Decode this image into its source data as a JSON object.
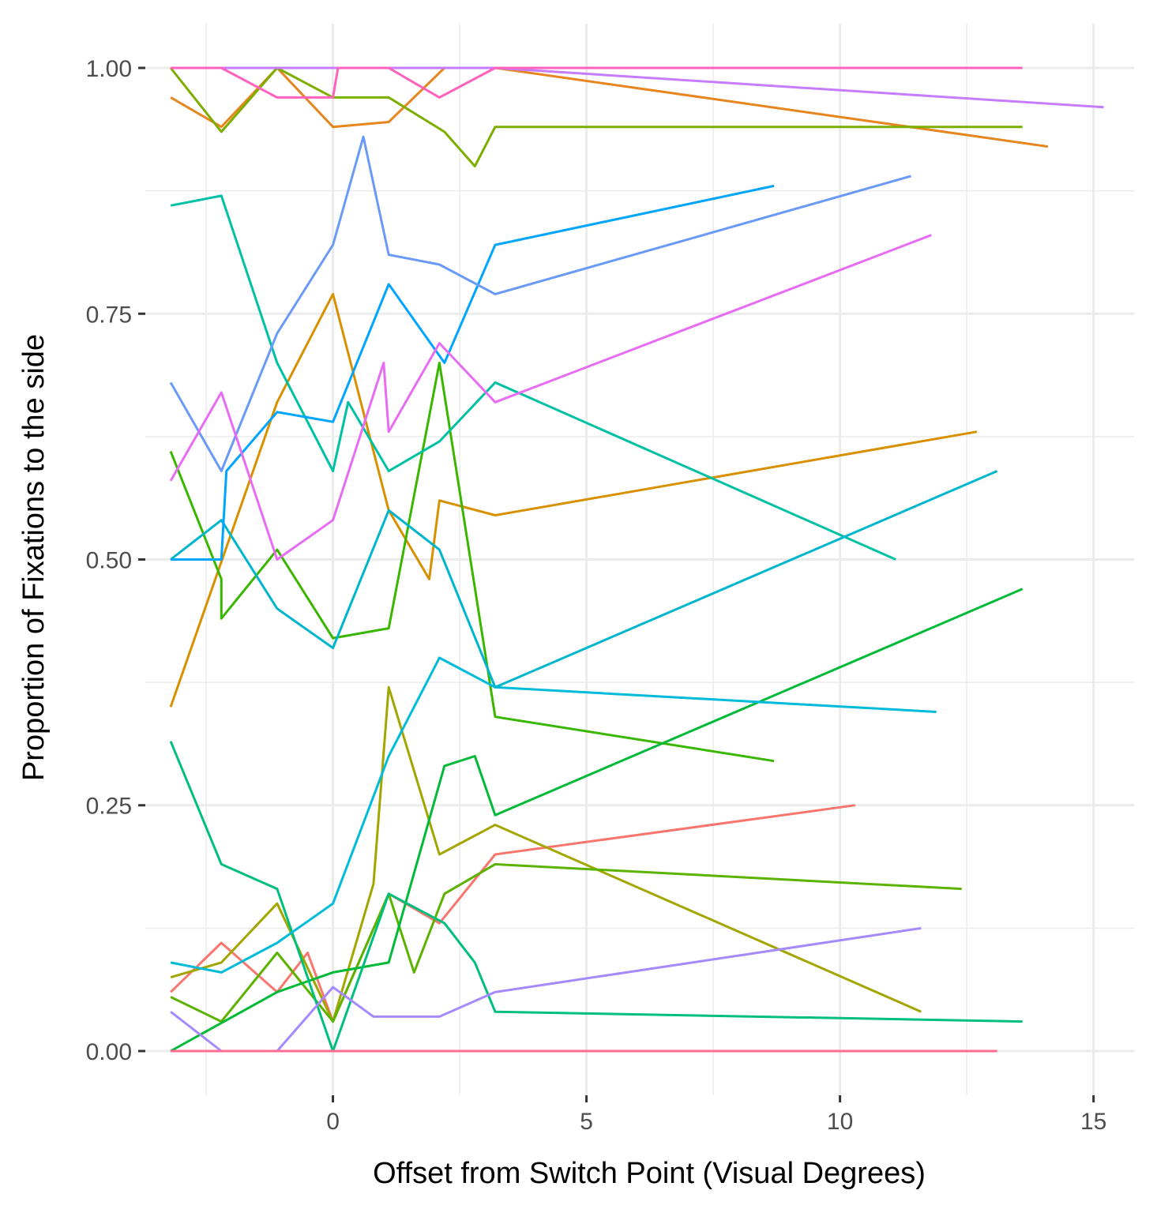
{
  "chart_data": {
    "type": "line",
    "title": "",
    "xlabel": "Offset from Switch Point (Visual Degrees)",
    "ylabel": "Proportion of Fixations to the side",
    "xlim": [
      -3.7,
      15.8
    ],
    "ylim": [
      -0.045,
      1.045
    ],
    "x_ticks": [
      0,
      5,
      10,
      15
    ],
    "x_tick_labels": [
      "0",
      "5",
      "10",
      "15"
    ],
    "y_ticks": [
      0,
      0.25,
      0.5,
      0.75,
      1
    ],
    "y_tick_labels": [
      "0.00",
      "0.25",
      "0.50",
      "0.75",
      "1.00"
    ],
    "grid": true,
    "legend": "none",
    "series": [
      {
        "color": "#F8766D",
        "x": [
          -3.2,
          -2.2,
          -1.1,
          -0.5,
          0,
          1.1,
          2.1,
          3.2,
          10.3
        ],
        "y": [
          0.06,
          0.11,
          0.06,
          0.1,
          0.03,
          0.16,
          0.13,
          0.2,
          0.25
        ]
      },
      {
        "color": "#E7851E",
        "x": [
          -3.2,
          -2.2,
          -1.1,
          0,
          1.1,
          2.2,
          3.2,
          14.1
        ],
        "y": [
          0.97,
          0.94,
          1.0,
          0.94,
          0.945,
          1.0,
          1.0,
          0.92
        ]
      },
      {
        "color": "#D89000",
        "x": [
          -3.2,
          -1.1,
          0,
          1.1,
          1.9,
          2.1,
          3.2,
          12.7
        ],
        "y": [
          0.35,
          0.66,
          0.77,
          0.55,
          0.48,
          0.56,
          0.545,
          0.63
        ]
      },
      {
        "color": "#A3A500",
        "x": [
          -3.2,
          -2.2,
          -1.1,
          0,
          0.8,
          1.1,
          2.1,
          3.2,
          11.6
        ],
        "y": [
          0.075,
          0.09,
          0.15,
          0.03,
          0.17,
          0.37,
          0.2,
          0.23,
          0.04
        ]
      },
      {
        "color": "#7CAE00",
        "x": [
          -3.2,
          -2.2,
          -1.1,
          0,
          1.1,
          2.2,
          2.8,
          3.2,
          13.6
        ],
        "y": [
          1.0,
          0.935,
          1.0,
          0.97,
          0.97,
          0.935,
          0.9,
          0.94,
          0.94
        ]
      },
      {
        "color": "#5BB300",
        "x": [
          -3.2,
          -2.2,
          -1.1,
          0,
          1.1,
          1.6,
          2.2,
          3.2,
          12.4
        ],
        "y": [
          0.055,
          0.03,
          0.1,
          0.03,
          0.16,
          0.08,
          0.16,
          0.19,
          0.165
        ]
      },
      {
        "color": "#39B600",
        "x": [
          -3.2,
          -2.2,
          -2.2,
          -1.1,
          0,
          1.1,
          2.1,
          3.2,
          8.7
        ],
        "y": [
          0.61,
          0.48,
          0.44,
          0.51,
          0.42,
          0.43,
          0.7,
          0.34,
          0.295
        ]
      },
      {
        "color": "#00BA38",
        "x": [
          -3.2,
          -1.1,
          0,
          1.1,
          2.2,
          2.8,
          3.2,
          13.6
        ],
        "y": [
          0.0,
          0.06,
          0.08,
          0.09,
          0.29,
          0.3,
          0.24,
          0.47
        ]
      },
      {
        "color": "#00BF7D",
        "x": [
          -3.2,
          -2.2,
          -1.1,
          0,
          1.1,
          2.2,
          2.8,
          3.2,
          13.6
        ],
        "y": [
          0.315,
          0.19,
          0.165,
          0.0,
          0.16,
          0.13,
          0.09,
          0.04,
          0.03
        ]
      },
      {
        "color": "#00C1A3",
        "x": [
          -3.2,
          -2.2,
          -1.1,
          0,
          0.3,
          1.1,
          2.1,
          3.2,
          11.1
        ],
        "y": [
          0.86,
          0.87,
          0.7,
          0.59,
          0.66,
          0.59,
          0.62,
          0.68,
          0.5
        ]
      },
      {
        "color": "#00BBDA",
        "x": [
          -3.2,
          -2.2,
          -1.1,
          0,
          1.1,
          2.1,
          3.2,
          11.9
        ],
        "y": [
          0.09,
          0.08,
          0.11,
          0.15,
          0.3,
          0.4,
          0.37,
          0.345
        ]
      },
      {
        "color": "#00B6CC",
        "x": [
          -3.2,
          -2.2,
          -1.1,
          0,
          1.1,
          2.1,
          3.2,
          13.1
        ],
        "y": [
          0.5,
          0.54,
          0.45,
          0.41,
          0.55,
          0.51,
          0.37,
          0.59
        ]
      },
      {
        "color": "#00A5FF",
        "x": [
          -3.2,
          -2.2,
          -2.1,
          -1.1,
          0,
          1.1,
          2.2,
          3.2,
          8.7
        ],
        "y": [
          0.5,
          0.5,
          0.59,
          0.65,
          0.64,
          0.78,
          0.7,
          0.82,
          0.88
        ]
      },
      {
        "color": "#6A9AF8",
        "x": [
          -3.2,
          -2.2,
          -1.1,
          0,
          0.6,
          1.1,
          2.1,
          3.2,
          11.4
        ],
        "y": [
          0.68,
          0.59,
          0.73,
          0.82,
          0.93,
          0.81,
          0.8,
          0.77,
          0.89
        ]
      },
      {
        "color": "#A58AFF",
        "x": [
          -3.2,
          -2.2,
          -1.1,
          0,
          0.8,
          2.1,
          3.2,
          11.6
        ],
        "y": [
          0.04,
          0.0,
          0.0,
          0.065,
          0.035,
          0.035,
          0.06,
          0.125
        ]
      },
      {
        "color": "#C77CFF",
        "x": [
          -3.2,
          3.2,
          15.2
        ],
        "y": [
          1.0,
          1.0,
          0.96
        ]
      },
      {
        "color": "#E76BF3",
        "x": [
          -3.2,
          -2.2,
          -1.1,
          0,
          1.0,
          1.1,
          2.1,
          3.2,
          11.8
        ],
        "y": [
          0.58,
          0.67,
          0.5,
          0.54,
          0.7,
          0.63,
          0.72,
          0.66,
          0.83
        ]
      },
      {
        "color": "#FF62BC",
        "x": [
          -3.2,
          -2.2,
          -1.1,
          0,
          0.1,
          1.1,
          2.1,
          3.2,
          13.6
        ],
        "y": [
          1.0,
          1.0,
          0.97,
          0.97,
          1.0,
          1.0,
          0.97,
          1.0,
          1.0
        ]
      },
      {
        "color": "#FF6C91",
        "x": [
          -3.2,
          13.1
        ],
        "y": [
          0.0,
          0.0
        ]
      }
    ]
  }
}
